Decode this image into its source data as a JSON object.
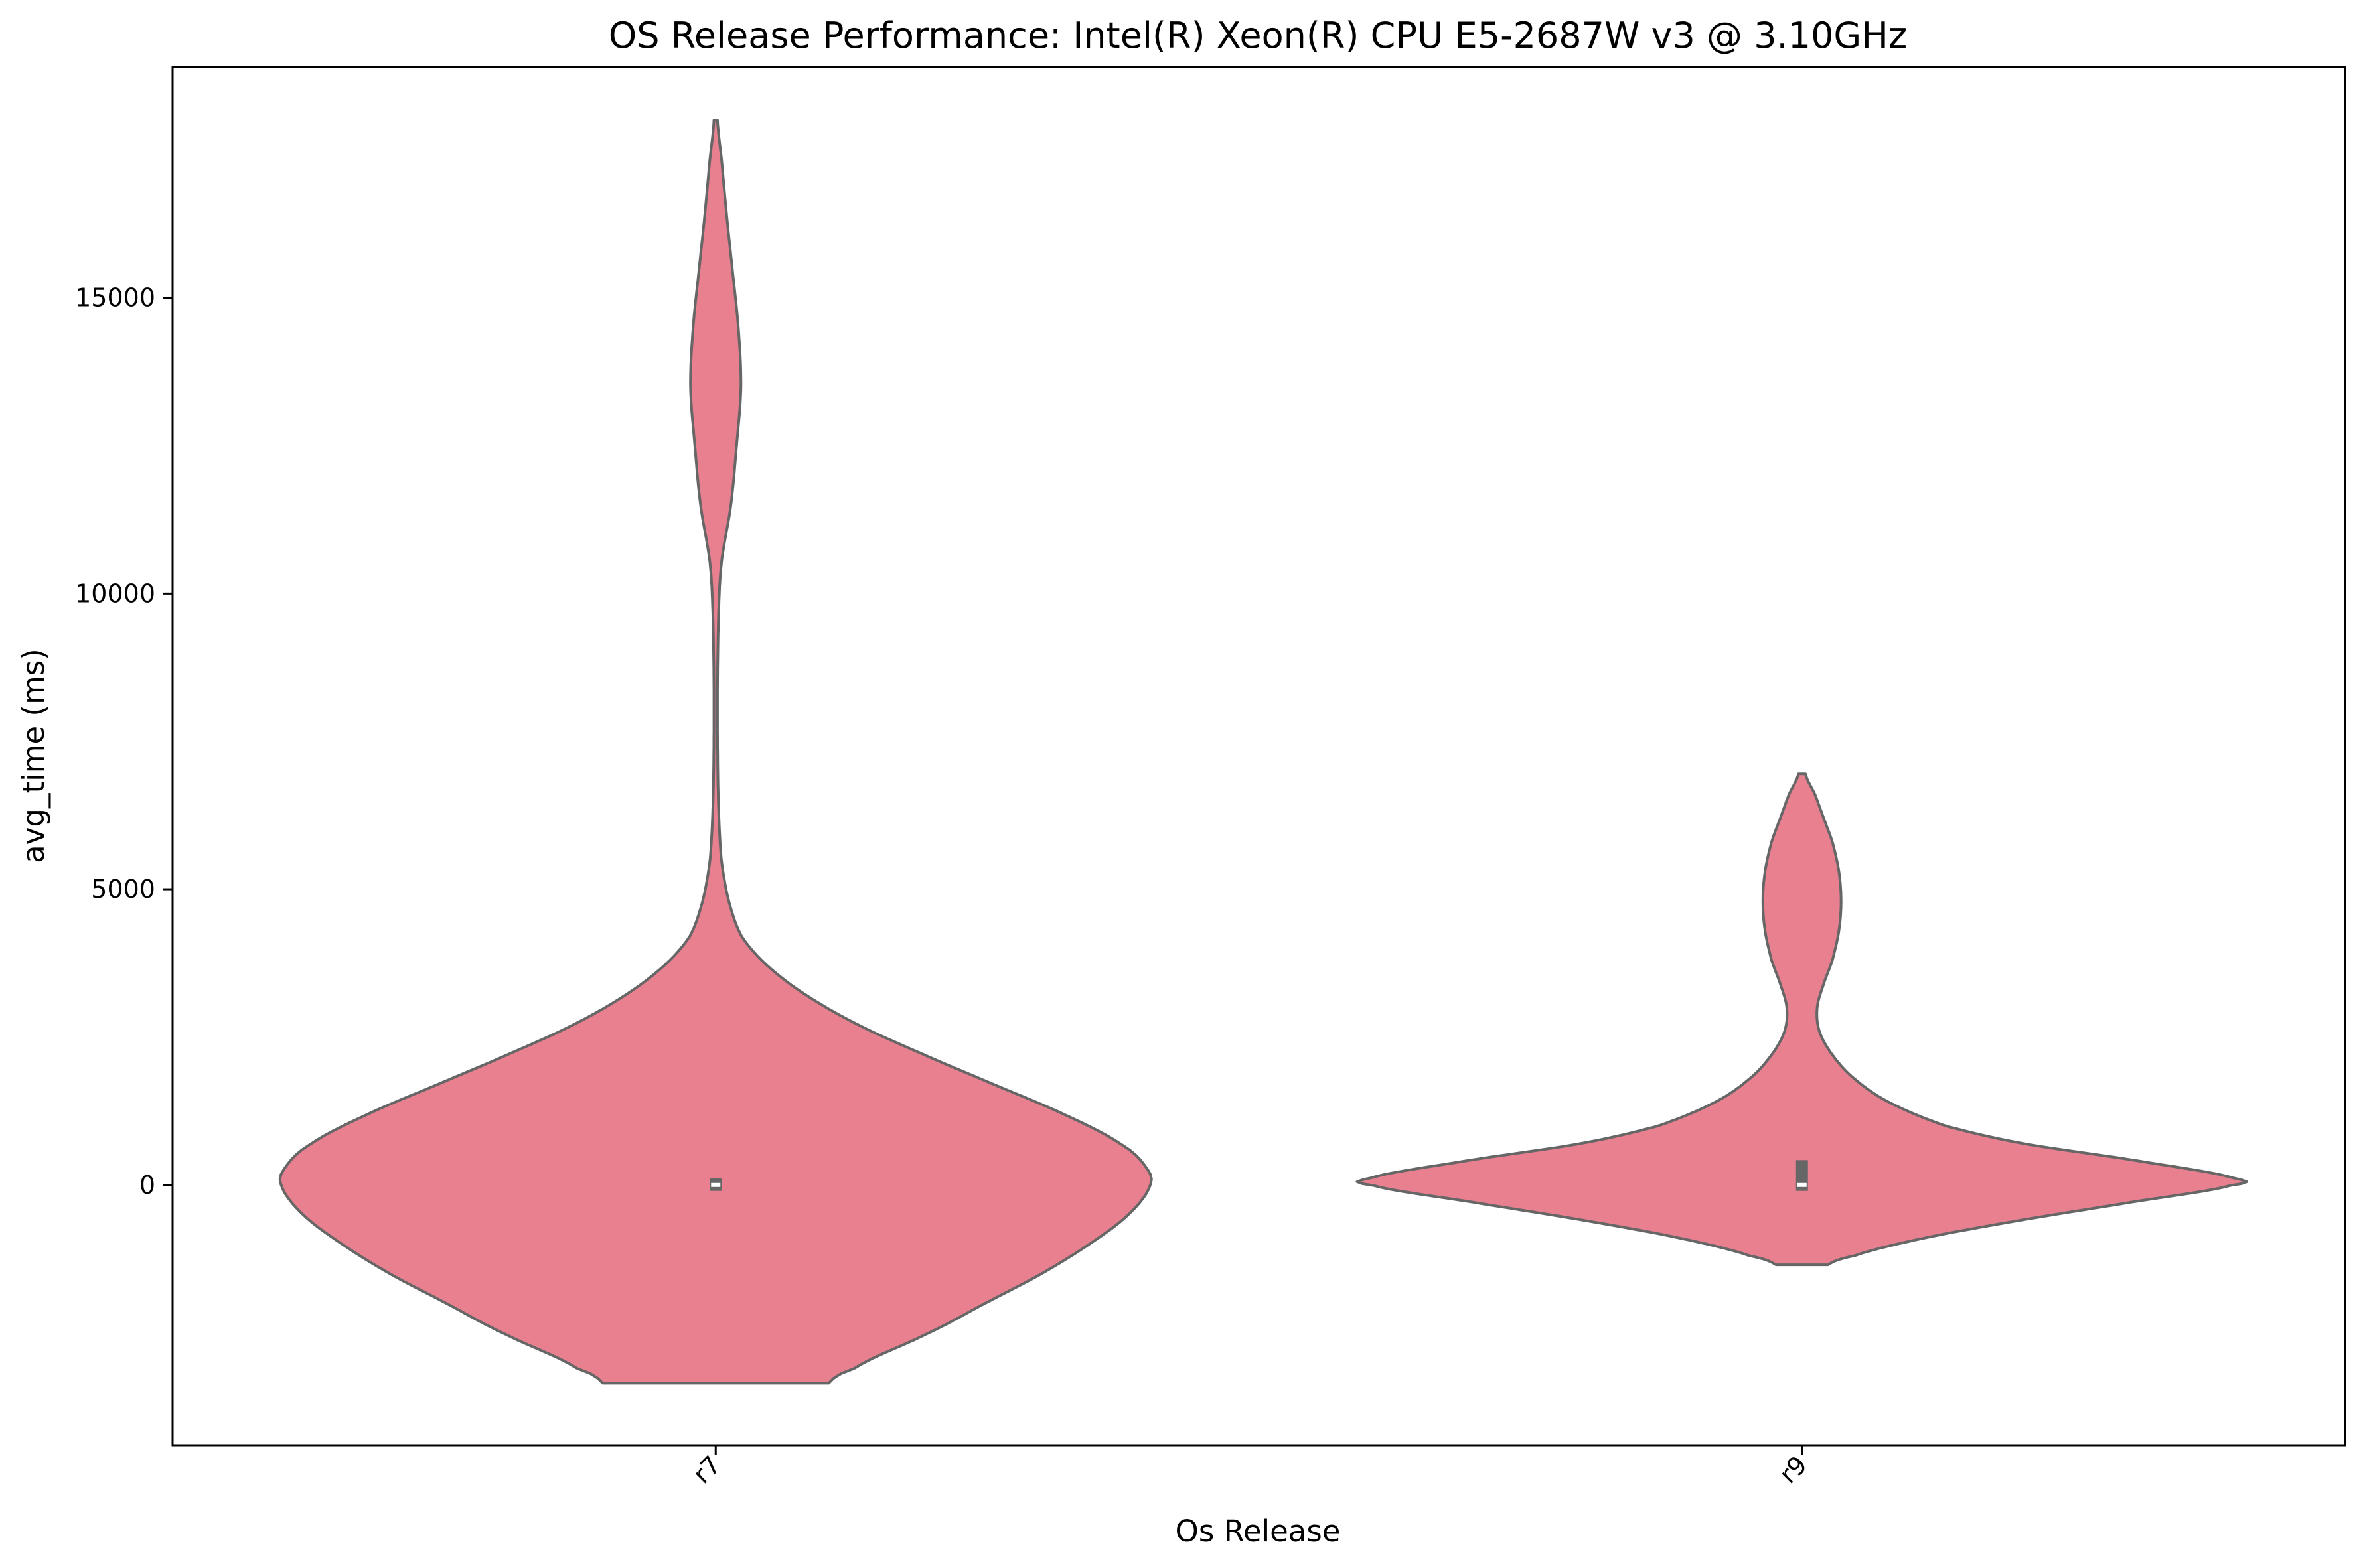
{
  "chart_data": {
    "type": "violin",
    "title": "OS Release Performance: Intel(R) Xeon(R) CPU E5-2687W v3 @ 3.10GHz",
    "xlabel": "Os Release",
    "ylabel": "avg_time (ms)",
    "categories": [
      "r7",
      "r9"
    ],
    "ylim": [
      -4400,
      18900
    ],
    "yticks": [
      0,
      5000,
      10000,
      15000
    ],
    "ytick_labels": [
      "0",
      "5000",
      "10000",
      "15000"
    ],
    "grid": false,
    "fill_color": "#e88090",
    "edge_color": "#666666",
    "violins": [
      {
        "category": "r7",
        "min": -3350,
        "max": 18000,
        "median": 0,
        "q1": -100,
        "q3": 120,
        "density": [
          [
            -3350,
            0.26
          ],
          [
            -3100,
            0.32
          ],
          [
            -2500,
            0.49
          ],
          [
            -2000,
            0.62
          ],
          [
            -1500,
            0.75
          ],
          [
            -1000,
            0.86
          ],
          [
            -500,
            0.95
          ],
          [
            0,
            1.0
          ],
          [
            300,
            0.99
          ],
          [
            700,
            0.93
          ],
          [
            1200,
            0.8
          ],
          [
            1700,
            0.64
          ],
          [
            2200,
            0.48
          ],
          [
            2700,
            0.33
          ],
          [
            3200,
            0.21
          ],
          [
            3700,
            0.12
          ],
          [
            4200,
            0.06
          ],
          [
            4800,
            0.03
          ],
          [
            5500,
            0.013
          ],
          [
            6500,
            0.006
          ],
          [
            8000,
            0.004
          ],
          [
            9500,
            0.006
          ],
          [
            10500,
            0.013
          ],
          [
            11500,
            0.035
          ],
          [
            12500,
            0.048
          ],
          [
            13500,
            0.058
          ],
          [
            14500,
            0.052
          ],
          [
            15500,
            0.038
          ],
          [
            16500,
            0.024
          ],
          [
            17300,
            0.014
          ],
          [
            18000,
            0.004
          ]
        ]
      },
      {
        "category": "r9",
        "min": -1350,
        "max": 6950,
        "median": 0,
        "q1": -100,
        "q3": 420,
        "density": [
          [
            -1350,
            0.06
          ],
          [
            -1200,
            0.12
          ],
          [
            -900,
            0.28
          ],
          [
            -600,
            0.5
          ],
          [
            -300,
            0.75
          ],
          [
            0,
            0.99
          ],
          [
            100,
            1.0
          ],
          [
            400,
            0.78
          ],
          [
            700,
            0.51
          ],
          [
            1000,
            0.33
          ],
          [
            1400,
            0.2
          ],
          [
            1800,
            0.12
          ],
          [
            2200,
            0.07
          ],
          [
            2600,
            0.04
          ],
          [
            3000,
            0.035
          ],
          [
            3400,
            0.05
          ],
          [
            3800,
            0.07
          ],
          [
            4300,
            0.085
          ],
          [
            4800,
            0.09
          ],
          [
            5300,
            0.085
          ],
          [
            5800,
            0.07
          ],
          [
            6200,
            0.05
          ],
          [
            6600,
            0.03
          ],
          [
            6950,
            0.008
          ]
        ]
      }
    ]
  }
}
